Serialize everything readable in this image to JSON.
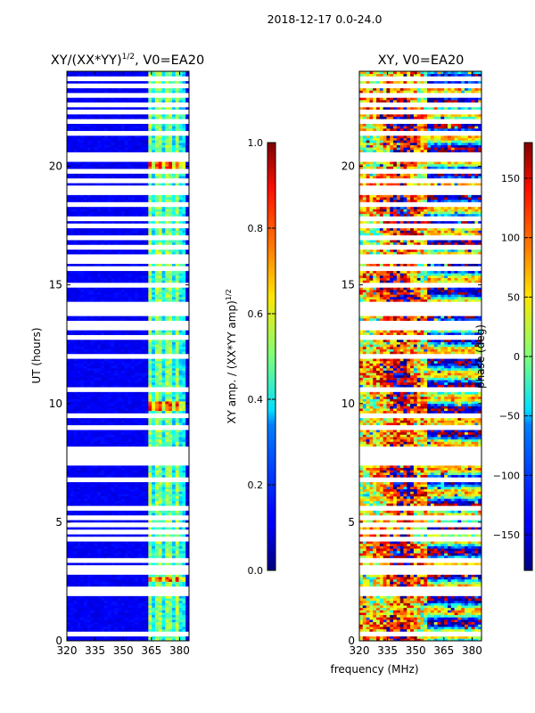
{
  "figure_title": "2018-12-17 0.0-24.0",
  "chart_data": [
    {
      "type": "heatmap",
      "title_main": "XY/(XX*YY)",
      "title_sup": "1/2",
      "title_suffix": ", V0=EA20",
      "xlabel": "",
      "ylabel": "UT (hours)",
      "xlim": [
        320,
        385
      ],
      "ylim": [
        0,
        24
      ],
      "xticks": [
        320,
        335,
        350,
        365,
        380
      ],
      "yticks": [
        0,
        5,
        10,
        15,
        20
      ],
      "colormap": "jet",
      "colorbar": {
        "label_main": "XY amp. / (XX*YY amp)",
        "label_sup": "1/2",
        "range": [
          0.0,
          1.0
        ],
        "ticks": [
          "0.0",
          "0.2",
          "0.4",
          "0.6",
          "0.8",
          "1.0"
        ]
      },
      "data_gaps_hours": [
        0.3,
        2.0,
        2.2,
        2.9,
        3.1,
        3.4,
        4.3,
        4.6,
        4.9,
        5.2,
        5.6,
        6.8,
        7.5,
        7.7,
        7.9,
        8.1,
        9.0,
        9.5,
        10.6,
        12.0,
        12.8,
        13.2,
        13.4,
        13.8,
        14.0,
        14.2,
        15.0,
        15.7,
        16.0,
        16.2,
        16.6,
        17.0,
        17.5,
        17.8,
        18.4,
        18.9,
        19.1,
        19.4,
        19.8,
        20.3,
        20.5,
        21.4,
        21.9,
        22.3,
        22.6,
        23.0,
        23.4,
        23.7
      ],
      "active_band_mhz": [
        363,
        383
      ],
      "high_value_channels_mhz": [
        364.5,
        369,
        374,
        379
      ],
      "high_value_hours": [
        2.2,
        2.6,
        5.6,
        9.5,
        9.8,
        10.0,
        19.9,
        20.1
      ]
    },
    {
      "type": "heatmap",
      "title": "XY, V0=EA20",
      "xlabel": "frequency (MHz)",
      "ylabel": "",
      "xlim": [
        320,
        385
      ],
      "ylim": [
        0,
        24
      ],
      "xticks": [
        320,
        335,
        350,
        365,
        380
      ],
      "yticks": [
        0,
        5,
        10,
        15,
        20
      ],
      "colormap": "jet",
      "colorbar": {
        "label": "phase (deg)",
        "range": [
          -180,
          180
        ],
        "ticks": [
          "−150",
          "−100",
          "−50",
          "0",
          "50",
          "100",
          "150"
        ]
      },
      "data_gaps_hours": [
        0.3,
        2.0,
        2.2,
        2.9,
        3.1,
        3.4,
        4.3,
        4.6,
        4.9,
        5.2,
        5.6,
        6.8,
        7.5,
        7.7,
        7.9,
        8.1,
        9.0,
        9.5,
        10.6,
        12.0,
        12.8,
        13.2,
        13.4,
        13.8,
        14.0,
        14.2,
        15.0,
        15.7,
        16.0,
        16.2,
        16.6,
        17.0,
        17.5,
        17.8,
        18.4,
        18.9,
        19.1,
        19.4,
        19.8,
        20.3,
        20.5,
        21.4,
        21.9,
        22.3,
        22.6,
        23.0,
        23.4,
        23.7
      ],
      "phase_wrap_center_mhz": 342
    }
  ]
}
